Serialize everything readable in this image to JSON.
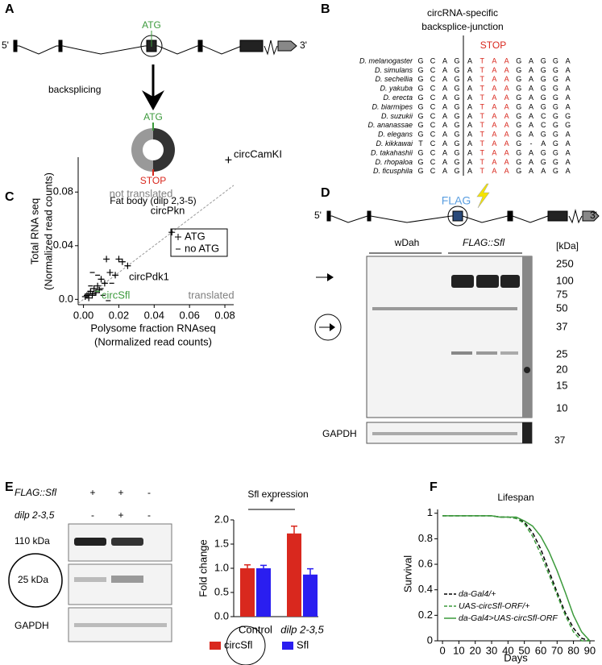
{
  "panel_letters": [
    "A",
    "B",
    "C",
    "D",
    "E",
    "F"
  ],
  "panel_a": {
    "five_prime": "5'",
    "three_prime": "3'",
    "start": "ATG",
    "arrow_label": "backsplicing",
    "circ_start": "ATG",
    "circ_stop": "STOP"
  },
  "panel_b": {
    "title": [
      "circRNA-specific",
      "backsplice-junction"
    ],
    "stop": "STOP",
    "species": [
      "D. melanogaster",
      "D. simulans",
      "D. sechellia",
      "D. yakuba",
      "D. erecta",
      "D. biarmipes",
      "D. suzukii",
      "D. ananassae",
      "D. elegans",
      "D. kikkawai",
      "D. takahashii",
      "D. rhopaloa",
      "D. ficusphila"
    ],
    "sequences": [
      [
        "G",
        "C",
        "A",
        "G",
        "A",
        "T",
        "A",
        "A",
        "G",
        "A",
        "G",
        "G",
        "A"
      ],
      [
        "G",
        "C",
        "A",
        "G",
        "A",
        "T",
        "A",
        "A",
        "G",
        "A",
        "G",
        "G",
        "A"
      ],
      [
        "G",
        "C",
        "A",
        "G",
        "A",
        "T",
        "A",
        "A",
        "G",
        "A",
        "G",
        "G",
        "A"
      ],
      [
        "G",
        "C",
        "A",
        "G",
        "A",
        "T",
        "A",
        "A",
        "G",
        "A",
        "G",
        "G",
        "A"
      ],
      [
        "G",
        "C",
        "A",
        "G",
        "A",
        "T",
        "A",
        "A",
        "G",
        "A",
        "G",
        "G",
        "A"
      ],
      [
        "G",
        "C",
        "A",
        "G",
        "A",
        "T",
        "A",
        "A",
        "G",
        "A",
        "G",
        "G",
        "A"
      ],
      [
        "G",
        "C",
        "A",
        "G",
        "A",
        "T",
        "A",
        "A",
        "G",
        "A",
        "C",
        "G",
        "G"
      ],
      [
        "G",
        "C",
        "A",
        "G",
        "A",
        "T",
        "A",
        "A",
        "G",
        "A",
        "C",
        "G",
        "G"
      ],
      [
        "G",
        "C",
        "A",
        "G",
        "A",
        "T",
        "A",
        "A",
        "G",
        "A",
        "G",
        "G",
        "A"
      ],
      [
        "T",
        "C",
        "A",
        "G",
        "A",
        "T",
        "A",
        "A",
        "G",
        "-",
        "A",
        "G",
        "A"
      ],
      [
        "G",
        "C",
        "A",
        "G",
        "A",
        "T",
        "A",
        "A",
        "G",
        "A",
        "G",
        "G",
        "A"
      ],
      [
        "G",
        "C",
        "A",
        "G",
        "A",
        "T",
        "A",
        "A",
        "G",
        "A",
        "G",
        "G",
        "A"
      ],
      [
        "G",
        "C",
        "A",
        "G",
        "A",
        "T",
        "A",
        "A",
        "G",
        "A",
        "A",
        "G",
        "A"
      ]
    ]
  },
  "panel_d": {
    "five_prime": "5'",
    "three_prime": "3'",
    "tag": "FLAG",
    "lanes": [
      "wDah",
      "FLAG::Sfl"
    ],
    "unit": "[kDa]",
    "markers": [
      250,
      100,
      75,
      50,
      37,
      25,
      20,
      15,
      10
    ],
    "loading": "GAPDH",
    "loading_size": 37
  },
  "panel_e": {
    "rows": [
      {
        "label": "FLAG::Sfl",
        "marks": [
          "+",
          "+",
          "-"
        ]
      },
      {
        "label": "dilp 2-3,5",
        "marks": [
          "-",
          "+",
          "-"
        ]
      }
    ],
    "bands": [
      "110 kDa",
      "25 kDa",
      "GAPDH"
    ]
  },
  "chart_data": [
    {
      "type": "scatter",
      "title": "Fat body (dilp 2,3-5)",
      "xlabel": [
        "Polysome fraction RNAseq",
        "(Normalized read counts)"
      ],
      "ylabel": [
        "Total RNA seq",
        "(Normalized read counts)"
      ],
      "xlim": [
        -0.003,
        0.085
      ],
      "ylim": [
        -0.004,
        0.106
      ],
      "xticks": [
        {
          "value": 0,
          "label": "0.00"
        },
        0.02,
        0.04,
        0.06,
        0.08
      ],
      "yticks": [
        {
          "value": 0,
          "label": "0.0"
        },
        0.04,
        0.08
      ],
      "diagonal": true,
      "series": [
        {
          "name": "ATG",
          "marker": "+",
          "color": "#000000",
          "x": [
            0.082,
            0.05,
            0.013,
            0.02,
            0.022,
            0.025,
            0.015,
            0.01,
            0.012,
            0.008,
            0.006,
            0.004,
            0.003,
            0.002,
            0.001,
            0.005,
            0.007,
            0.009,
            0.018,
            0.003
          ],
          "y": [
            0.104,
            0.05,
            0.03,
            0.03,
            0.028,
            0.025,
            0.02,
            0.015,
            0.012,
            0.01,
            0.008,
            0.006,
            0.004,
            0.003,
            0.002,
            0.003,
            0.005,
            0.007,
            0.018,
            0.001
          ]
        },
        {
          "name": "no ATG",
          "marker": "-",
          "color": "#000000",
          "x": [
            0.005,
            0.008,
            0.01,
            0.006,
            0.014,
            0.004,
            0.011,
            0.016,
            0.008
          ],
          "y": [
            0.02,
            0.018,
            0.008,
            0.004,
            -0.001,
            0.01,
            0.003,
            0.012,
            0.006
          ],
          "colors": [
            "#000000",
            "#000000",
            "#000000",
            "#000000",
            "#000000",
            "#000000",
            "#000000",
            "#000000",
            "#3c9a3c"
          ]
        }
      ],
      "annotations": [
        {
          "text": "circCamKI",
          "color": "#000000"
        },
        {
          "text": "circPkn",
          "color": "#000000"
        },
        {
          "text": "circPdk1",
          "color": "#000000"
        },
        {
          "text": "circSfl",
          "color": "#3c9a3c"
        },
        {
          "text": "not translated",
          "color": "#808080"
        },
        {
          "text": "translated",
          "color": "#808080"
        }
      ]
    },
    {
      "type": "bar",
      "title": "Sfl expression",
      "ylabel": "Fold change",
      "categories": [
        "Control",
        "dilp 2-3,5"
      ],
      "ylim": [
        0,
        2
      ],
      "yticks": [
        {
          "value": 0,
          "label": "0.0"
        },
        0.5,
        {
          "value": 1,
          "label": "1.0"
        },
        1.5,
        {
          "value": 2,
          "label": "2.0"
        }
      ],
      "significance": "*",
      "series": [
        {
          "name": "circSfl",
          "color": "#d9281e",
          "values": [
            1.0,
            1.72
          ],
          "errors": [
            0.07,
            0.15
          ]
        },
        {
          "name": "Sfl",
          "color": "#2a1ef0",
          "values": [
            1.0,
            0.87
          ],
          "errors": [
            0.06,
            0.12
          ]
        }
      ]
    },
    {
      "type": "line",
      "title": "Lifespan",
      "xlabel": "Days",
      "ylabel": "Survival",
      "xlim": [
        -3,
        93
      ],
      "ylim": [
        0,
        1.03
      ],
      "xticks": [
        0,
        10,
        20,
        30,
        40,
        50,
        60,
        70,
        80,
        90
      ],
      "yticks": [
        0,
        0.2,
        0.4,
        0.6,
        0.8,
        1
      ],
      "x": [
        0,
        5,
        10,
        15,
        20,
        25,
        30,
        35,
        40,
        45,
        50,
        55,
        60,
        65,
        70,
        75,
        80,
        85,
        90
      ],
      "series": [
        {
          "name": "da-Gal4/+",
          "color": "#000000",
          "dash": true,
          "values": [
            0.98,
            0.98,
            0.98,
            0.98,
            0.98,
            0.98,
            0.98,
            0.97,
            0.97,
            0.96,
            0.93,
            0.85,
            0.72,
            0.55,
            0.38,
            0.22,
            0.1,
            0.02,
            0
          ]
        },
        {
          "name": "UAS-circSfl-ORF/+",
          "color": "#3c9a3c",
          "dash": true,
          "values": [
            0.98,
            0.98,
            0.98,
            0.98,
            0.98,
            0.98,
            0.98,
            0.97,
            0.97,
            0.96,
            0.92,
            0.82,
            0.68,
            0.52,
            0.36,
            0.2,
            0.07,
            0,
            0
          ]
        },
        {
          "name": "da-Gal4>UAS-circSfl-ORF",
          "color": "#3c9a3c",
          "dash": false,
          "values": [
            0.98,
            0.98,
            0.98,
            0.98,
            0.98,
            0.98,
            0.98,
            0.97,
            0.97,
            0.97,
            0.94,
            0.9,
            0.82,
            0.7,
            0.55,
            0.38,
            0.2,
            0.07,
            0
          ]
        }
      ]
    }
  ]
}
